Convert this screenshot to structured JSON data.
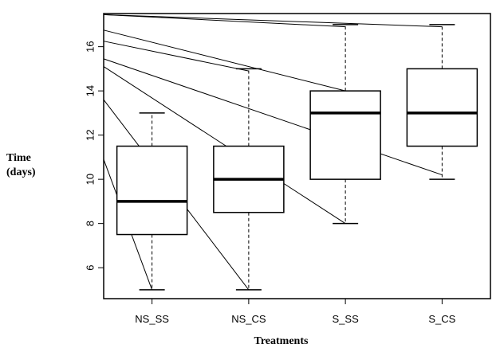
{
  "chart_data": {
    "type": "boxplot",
    "xlabel": "Treatments",
    "ylabel_lines": [
      "Time",
      "(days)"
    ],
    "categories": [
      "NS_SS",
      "NS_CS",
      "S_SS",
      "S_CS"
    ],
    "ylim": [
      4.6,
      17.5
    ],
    "yticks": [
      6,
      8,
      10,
      12,
      14,
      16
    ],
    "boxes": [
      {
        "name": "NS_SS",
        "whisker_low": 5,
        "q1": 7.5,
        "median": 9,
        "q3": 11.5,
        "whisker_high": 13
      },
      {
        "name": "NS_CS",
        "whisker_low": 5,
        "q1": 8.5,
        "median": 10,
        "q3": 11.5,
        "whisker_high": 15
      },
      {
        "name": "S_SS",
        "whisker_low": 8,
        "q1": 10,
        "median": 13,
        "q3": 14,
        "whisker_high": 17
      },
      {
        "name": "S_CS",
        "whisker_low": 10,
        "q1": 11.5,
        "median": 13,
        "q3": 15,
        "whisker_high": 17
      }
    ],
    "annotation_lines": [
      {
        "from": [
          0.5,
          10.9
        ],
        "to": [
          1,
          5
        ]
      },
      {
        "from": [
          0.5,
          13.6
        ],
        "to": [
          2,
          5
        ]
      },
      {
        "from": [
          0.5,
          15.1
        ],
        "to": [
          3,
          8
        ]
      },
      {
        "from": [
          0.5,
          15.45
        ],
        "to": [
          4,
          10.2
        ]
      },
      {
        "from": [
          0.5,
          16.25
        ],
        "to": [
          2,
          14.9
        ]
      },
      {
        "from": [
          0.5,
          16.75
        ],
        "to": [
          3,
          14
        ]
      },
      {
        "from": [
          0.5,
          17.45
        ],
        "to": [
          3,
          16.9
        ]
      },
      {
        "from": [
          0.5,
          17.45
        ],
        "to": [
          4,
          16.9
        ]
      }
    ]
  }
}
